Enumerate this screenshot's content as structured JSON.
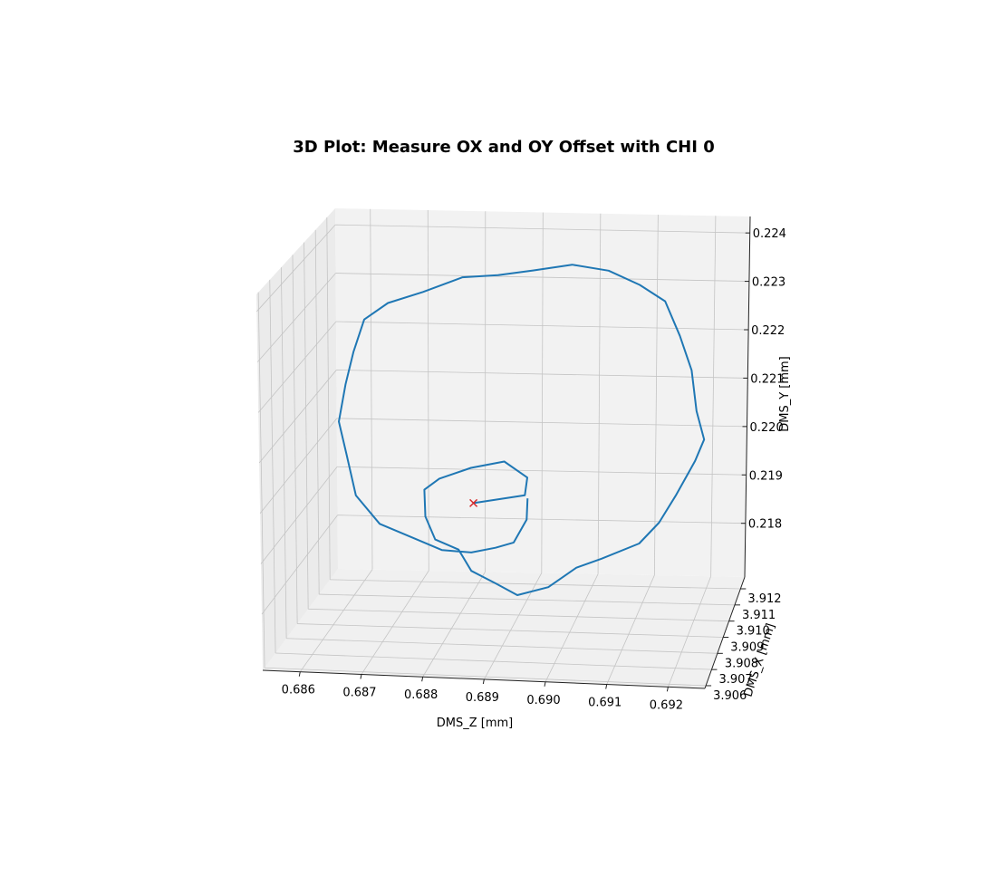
{
  "chart_data": {
    "type": "line3d",
    "title": "3D Plot: Measure OX and OY Offset with CHI 0",
    "xlabel": "DMS_Z [mm]",
    "ylabel": "DMS_X [mm]",
    "zlabel": "DMS_Y [mm]",
    "xlim": [
      0.68539,
      0.6926
    ],
    "ylim": [
      3.90583,
      3.91273
    ],
    "zlim": [
      0.21689,
      0.22434
    ],
    "xticks": [
      0.686,
      0.687,
      0.688,
      0.689,
      {
        "value": 0.69,
        "label": "0.690"
      },
      0.691,
      0.692
    ],
    "yticks": [
      3.906,
      3.907,
      3.908,
      3.909,
      {
        "value": 3.91,
        "label": "3.910"
      },
      3.911,
      3.912
    ],
    "zticks": [
      0.218,
      0.219,
      {
        "value": 0.22,
        "label": "0.220"
      },
      0.221,
      0.222,
      0.223,
      0.224
    ],
    "grid": true,
    "series": [
      {
        "color": "#1f77b4",
        "x": [
          0.68838,
          0.68923,
          0.6893,
          0.68887,
          0.68834,
          0.68784,
          0.68754,
          0.68757,
          0.68775,
          0.68811,
          0.68834,
          0.68872,
          0.68913,
          0.68964,
          0.6901,
          0.69056,
          0.69117,
          0.69148,
          0.69179,
          0.69209,
          0.69225,
          0.69214,
          0.69202,
          0.69183,
          0.69156,
          0.69117,
          0.69064,
          0.69002,
          0.68941,
          0.6888,
          0.68818,
          0.68757,
          0.68695,
          0.68657,
          0.68642,
          0.68623,
          0.68613,
          0.68622,
          0.68642,
          0.6868,
          0.68734,
          0.68788,
          0.68834,
          0.68872,
          0.68907,
          0.68926,
          0.68929
        ],
        "y": [
          3.909,
          3.9091,
          3.9089,
          3.9092,
          3.909,
          3.9088,
          3.9091,
          3.909,
          3.9089,
          3.9091,
          3.909,
          3.9092,
          3.9089,
          3.909,
          3.9091,
          3.9088,
          3.909,
          3.9092,
          3.9089,
          3.9091,
          3.909,
          3.9088,
          3.9091,
          3.909,
          3.9092,
          3.9089,
          3.909,
          3.9091,
          3.9088,
          3.909,
          3.9092,
          3.9089,
          3.9091,
          3.909,
          3.9088,
          3.9091,
          3.909,
          3.9092,
          3.9089,
          3.909,
          3.9091,
          3.9088,
          3.909,
          3.9092,
          3.9089,
          3.9091,
          3.909
        ],
        "z": [
          0.21944,
          0.2196,
          0.22002,
          0.22024,
          0.22015,
          0.21997,
          0.21965,
          0.21914,
          0.21871,
          0.21846,
          0.21807,
          0.21777,
          0.21764,
          0.21779,
          0.21817,
          0.21846,
          0.21873,
          0.2191,
          0.21975,
          0.2204,
          0.22087,
          0.2215,
          0.22223,
          0.22295,
          0.22358,
          0.22398,
          0.22422,
          0.22429,
          0.22423,
          0.22406,
          0.22394,
          0.2237,
          0.2234,
          0.22308,
          0.22247,
          0.22173,
          0.221,
          0.22027,
          0.21955,
          0.21896,
          0.21867,
          0.21853,
          0.21844,
          0.21849,
          0.2187,
          0.21911,
          0.21957
        ]
      }
    ],
    "marker": {
      "color": "#d62728",
      "x": 0.68838,
      "y": 3.909,
      "z": 0.21944
    }
  }
}
